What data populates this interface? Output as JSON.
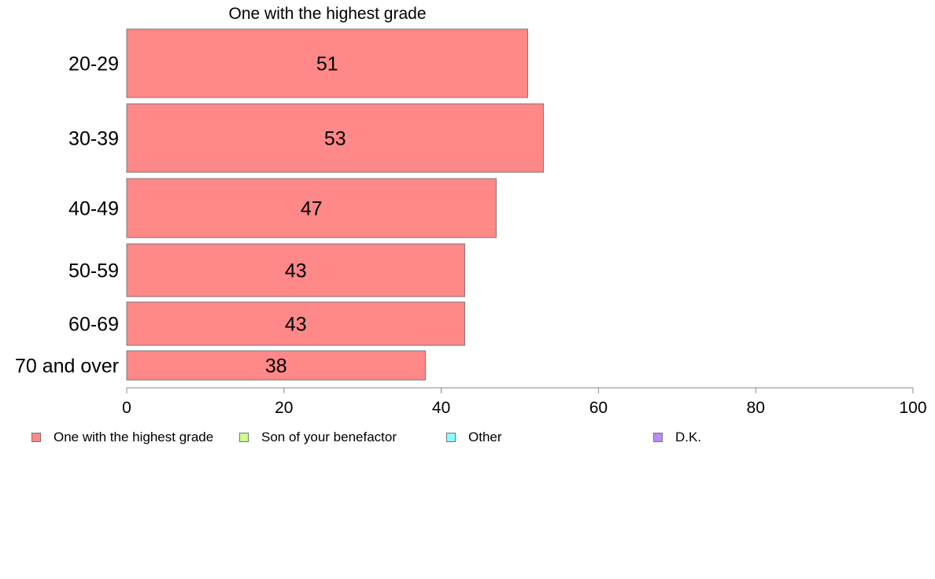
{
  "chart_data": {
    "type": "bar",
    "orientation": "horizontal",
    "title": "One with the highest grade",
    "categories": [
      "20-29",
      "30-39",
      "40-49",
      "50-59",
      "60-69",
      "70 and over"
    ],
    "series": [
      {
        "name": "One with the highest grade",
        "values": [
          51,
          53,
          47,
          43,
          43,
          38
        ],
        "color": "#ff8888"
      }
    ],
    "data_labels": [
      "51",
      "53",
      "47",
      "43",
      "43",
      "38"
    ],
    "xlim": [
      0,
      100
    ],
    "xticks": [
      0,
      20,
      40,
      60,
      80,
      100
    ],
    "xtick_labels": [
      "0",
      "20",
      "40",
      "60",
      "80",
      "100"
    ],
    "grid": false,
    "legend": {
      "placement": "bottom",
      "entries": [
        {
          "label": "One with the highest grade",
          "color": "#ff8888"
        },
        {
          "label": "Son of your benefactor",
          "color": "#ccff88"
        },
        {
          "label": "Other",
          "color": "#88ffff"
        },
        {
          "label": "D.K.",
          "color": "#bb88ff"
        }
      ]
    }
  }
}
